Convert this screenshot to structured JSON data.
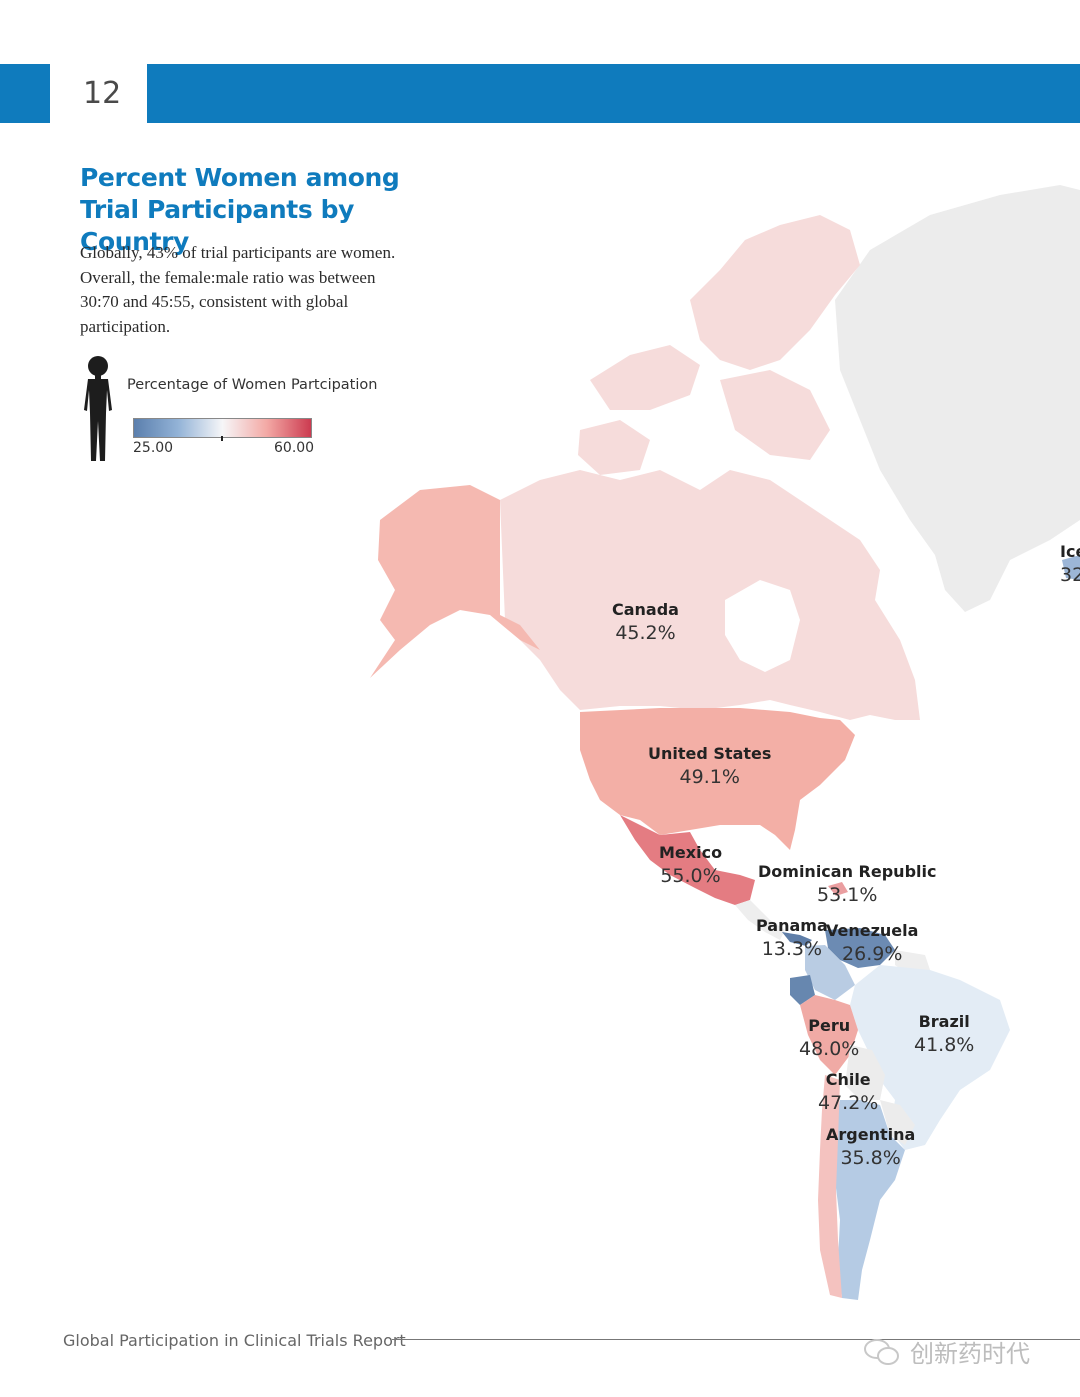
{
  "header": {
    "page_number": "12"
  },
  "title": "Percent Women among Trial Participants by Country",
  "description": "Globally, 43% of trial participants are women.  Overall, the female:male ratio was between 30:70 and 45:55, consistent with global participation.",
  "legend": {
    "title": "Percentage of Women Partcipation",
    "min": "25.00",
    "max": "60.00",
    "low_color": "#5b7fad",
    "mid_color": "#f6f6f8",
    "high_color": "#cc3b50"
  },
  "countries": [
    {
      "name": "Canada",
      "value": "45.2%"
    },
    {
      "name": "United States",
      "value": "49.1%"
    },
    {
      "name": "Mexico",
      "value": "55.0%"
    },
    {
      "name": "Dominican Republic",
      "value": "53.1%"
    },
    {
      "name": "Panama",
      "value": "13.3%"
    },
    {
      "name": "Venezuela",
      "value": "26.9%"
    },
    {
      "name": "Peru",
      "value": "48.0%"
    },
    {
      "name": "Brazil",
      "value": "41.8%"
    },
    {
      "name": "Chile",
      "value": "47.2%"
    },
    {
      "name": "Argentina",
      "value": "35.8%"
    },
    {
      "name": "Ice",
      "value": "32"
    }
  ],
  "footer": {
    "report_title": "Global Participation in Clinical Trials Report"
  },
  "watermark": "创新药时代"
}
